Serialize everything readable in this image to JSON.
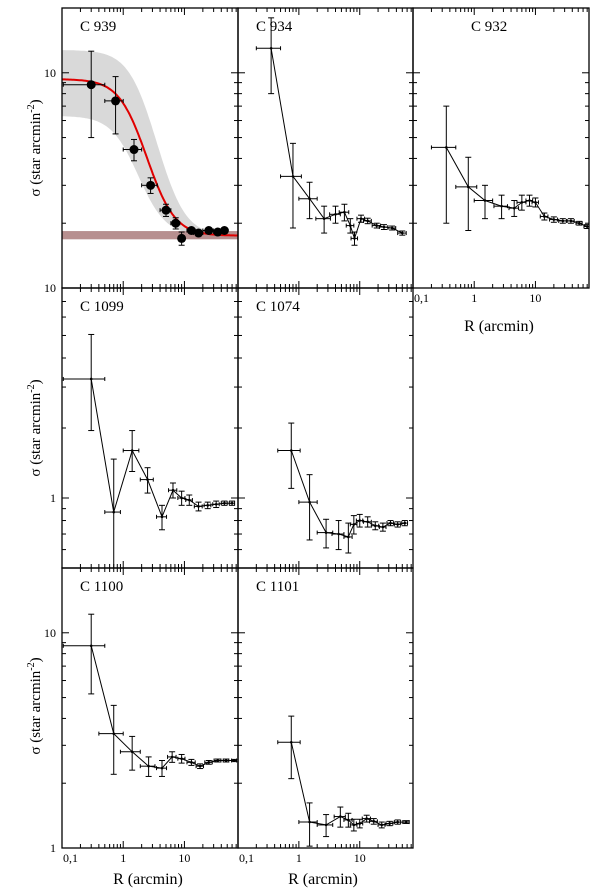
{
  "figure": {
    "ylabel": "σ (star arcmin⁻²)",
    "ylabel_main": "σ (star arcmin",
    "ylabel_sup": "-2",
    "ylabel_close": ")",
    "xlabel": "R (arcmin)",
    "x_tick_labels": [
      "0,1",
      "1",
      "10"
    ],
    "y_tick_labels": [
      "1",
      "10"
    ]
  },
  "colors": {
    "axis": "#000000",
    "fit_curve": "#e00000",
    "fit_band": "#d9d9d9",
    "background_band": "#b78f8f",
    "points": "#000000"
  },
  "chart_data": [
    {
      "type": "line",
      "title": "C 939",
      "xscale": "log",
      "yscale": "log",
      "xlim": [
        0.1,
        75
      ],
      "ylim": [
        1,
        20
      ],
      "markers": "filled-circle",
      "x": [
        0.3,
        0.75,
        1.5,
        2.8,
        5.0,
        7.2,
        9.0,
        13.0,
        17.0,
        25.0,
        35.0,
        45.0
      ],
      "y": [
        8.8,
        7.4,
        4.4,
        3.0,
        2.3,
        2.0,
        1.7,
        1.85,
        1.8,
        1.85,
        1.82,
        1.85
      ],
      "yerr_lo": [
        3.8,
        2.2,
        0.5,
        0.25,
        0.15,
        0.12,
        0.12,
        0.05,
        0.05,
        0.05,
        0.05,
        0.05
      ],
      "yerr_hi": [
        3.8,
        2.2,
        0.5,
        0.25,
        0.15,
        0.12,
        0.12,
        0.05,
        0.05,
        0.05,
        0.05,
        0.05
      ],
      "xerr": [
        0.2,
        0.25,
        0.5,
        0.8,
        1.0,
        1.2,
        1.0,
        2.0,
        3.0,
        5.0,
        5.0,
        5.0
      ],
      "king_fit": {
        "background": 1.75,
        "central_density": 7.6,
        "core_radius": 1.6
      },
      "uncertainty_band": true,
      "background_band": [
        1.72,
        1.8
      ]
    },
    {
      "type": "line",
      "title": "C 934",
      "xscale": "log",
      "yscale": "log",
      "xlim": [
        0.1,
        75
      ],
      "ylim": [
        1,
        20
      ],
      "x": [
        0.35,
        0.8,
        1.5,
        2.6,
        4.0,
        5.6,
        7.0,
        8.2,
        10.5,
        13.5,
        19.0,
        25.0,
        34.0,
        50.0
      ],
      "y": [
        13.0,
        3.3,
        2.6,
        2.1,
        2.2,
        2.25,
        1.95,
        1.7,
        2.1,
        2.05,
        1.95,
        1.92,
        1.9,
        1.8
      ],
      "yerr_lo": [
        5.0,
        1.4,
        0.5,
        0.3,
        0.2,
        0.2,
        0.15,
        0.12,
        0.08,
        0.06,
        0.05,
        0.05,
        0.04,
        0.04
      ],
      "yerr_hi": [
        5.0,
        1.4,
        0.5,
        0.3,
        0.2,
        0.2,
        0.15,
        0.12,
        0.08,
        0.06,
        0.05,
        0.05,
        0.04,
        0.04
      ],
      "xerr": [
        0.15,
        0.3,
        0.5,
        0.7,
        0.8,
        1.0,
        1.0,
        1.0,
        1.5,
        2.0,
        3.0,
        4.0,
        5.0,
        8.0
      ]
    },
    {
      "type": "line",
      "title": "C 932",
      "xscale": "log",
      "yscale": "log",
      "xlim": [
        0.1,
        75
      ],
      "ylim": [
        1,
        20
      ],
      "x": [
        0.35,
        0.8,
        1.5,
        2.8,
        4.5,
        6.0,
        8.0,
        10.0,
        14.0,
        20.0,
        28.0,
        38.0,
        52.0,
        70.0
      ],
      "y": [
        4.5,
        2.95,
        2.55,
        2.4,
        2.35,
        2.5,
        2.55,
        2.5,
        2.15,
        2.08,
        2.05,
        2.05,
        2.0,
        1.93
      ],
      "yerr_lo": [
        2.5,
        1.1,
        0.45,
        0.3,
        0.2,
        0.2,
        0.15,
        0.12,
        0.08,
        0.06,
        0.05,
        0.05,
        0.04,
        0.04
      ],
      "yerr_hi": [
        2.5,
        1.1,
        0.45,
        0.3,
        0.2,
        0.2,
        0.15,
        0.12,
        0.08,
        0.06,
        0.05,
        0.05,
        0.04,
        0.04
      ],
      "xerr": [
        0.15,
        0.3,
        0.5,
        0.7,
        0.8,
        1.0,
        1.0,
        1.2,
        2.0,
        3.0,
        4.0,
        5.0,
        6.0,
        8.0
      ]
    },
    {
      "type": "line",
      "title": "C 1099",
      "xscale": "log",
      "yscale": "log",
      "xlim": [
        0.1,
        75
      ],
      "ylim": [
        0.5,
        8
      ],
      "x": [
        0.3,
        0.7,
        1.4,
        2.5,
        4.3,
        6.5,
        9.0,
        12.0,
        17.0,
        24.0,
        33.0,
        45.0,
        60.0
      ],
      "y": [
        3.25,
        0.87,
        1.6,
        1.2,
        0.83,
        1.08,
        1.0,
        0.98,
        0.92,
        0.93,
        0.94,
        0.95,
        0.95
      ],
      "yerr_lo": [
        1.3,
        0.6,
        0.3,
        0.15,
        0.1,
        0.08,
        0.07,
        0.05,
        0.04,
        0.03,
        0.03,
        0.02,
        0.02
      ],
      "yerr_hi": [
        1.8,
        0.6,
        0.35,
        0.15,
        0.1,
        0.08,
        0.07,
        0.05,
        0.04,
        0.03,
        0.03,
        0.02,
        0.02
      ],
      "xerr": [
        0.2,
        0.2,
        0.4,
        0.6,
        0.8,
        1.0,
        1.2,
        1.5,
        2.5,
        3.0,
        4.0,
        5.0,
        6.0
      ]
    },
    {
      "type": "line",
      "title": "C 1074",
      "xscale": "log",
      "yscale": "log",
      "xlim": [
        0.1,
        75
      ],
      "ylim": [
        0.5,
        8
      ],
      "x": [
        0.75,
        1.5,
        2.8,
        4.5,
        6.5,
        8.0,
        10.0,
        13.5,
        18.0,
        24.0,
        32.0,
        42.0,
        55.0
      ],
      "y": [
        1.6,
        0.96,
        0.71,
        0.7,
        0.68,
        0.77,
        0.8,
        0.79,
        0.76,
        0.75,
        0.78,
        0.77,
        0.78
      ],
      "yerr_lo": [
        0.5,
        0.3,
        0.1,
        0.1,
        0.1,
        0.07,
        0.05,
        0.04,
        0.03,
        0.03,
        0.02,
        0.02,
        0.02
      ],
      "yerr_hi": [
        0.5,
        0.3,
        0.1,
        0.1,
        0.1,
        0.07,
        0.05,
        0.04,
        0.03,
        0.03,
        0.02,
        0.02,
        0.02
      ],
      "xerr": [
        0.3,
        0.5,
        0.8,
        1.0,
        1.0,
        1.0,
        1.2,
        2.0,
        2.5,
        3.0,
        4.0,
        5.0,
        6.0
      ]
    },
    {
      "type": "line",
      "title": "C 1100",
      "xscale": "log",
      "yscale": "log",
      "xlim": [
        0.1,
        75
      ],
      "ylim": [
        1,
        20
      ],
      "x": [
        0.3,
        0.7,
        1.4,
        2.6,
        4.3,
        6.3,
        9.0,
        13.0,
        18.0,
        25.0,
        35.0,
        48.0,
        65.0
      ],
      "y": [
        8.7,
        3.4,
        2.8,
        2.4,
        2.35,
        2.65,
        2.6,
        2.5,
        2.4,
        2.5,
        2.55,
        2.55,
        2.55
      ],
      "yerr_lo": [
        3.5,
        1.2,
        0.5,
        0.25,
        0.2,
        0.15,
        0.12,
        0.08,
        0.06,
        0.05,
        0.04,
        0.04,
        0.03
      ],
      "yerr_hi": [
        3.5,
        1.2,
        0.5,
        0.25,
        0.2,
        0.15,
        0.12,
        0.08,
        0.06,
        0.05,
        0.04,
        0.04,
        0.03
      ],
      "xerr": [
        0.2,
        0.3,
        0.5,
        0.7,
        0.8,
        1.0,
        1.2,
        2.0,
        2.5,
        3.5,
        4.5,
        5.0,
        6.0
      ]
    },
    {
      "type": "line",
      "title": "C 1101",
      "xscale": "log",
      "yscale": "log",
      "xlim": [
        0.1,
        75
      ],
      "ylim": [
        1,
        20
      ],
      "x": [
        0.75,
        1.5,
        2.8,
        4.8,
        6.5,
        8.0,
        10.0,
        13.0,
        17.0,
        23.0,
        31.0,
        42.0,
        58.0
      ],
      "y": [
        3.1,
        1.32,
        1.28,
        1.4,
        1.35,
        1.28,
        1.3,
        1.37,
        1.33,
        1.28,
        1.3,
        1.32,
        1.32
      ],
      "yerr_lo": [
        1.0,
        0.3,
        0.15,
        0.15,
        0.1,
        0.08,
        0.06,
        0.05,
        0.04,
        0.04,
        0.03,
        0.03,
        0.02
      ],
      "yerr_hi": [
        1.0,
        0.3,
        0.15,
        0.15,
        0.1,
        0.08,
        0.06,
        0.05,
        0.04,
        0.04,
        0.03,
        0.03,
        0.02
      ],
      "xerr": [
        0.3,
        0.5,
        0.8,
        1.0,
        1.0,
        1.0,
        1.2,
        2.0,
        2.5,
        3.0,
        4.0,
        5.0,
        7.0
      ]
    }
  ]
}
